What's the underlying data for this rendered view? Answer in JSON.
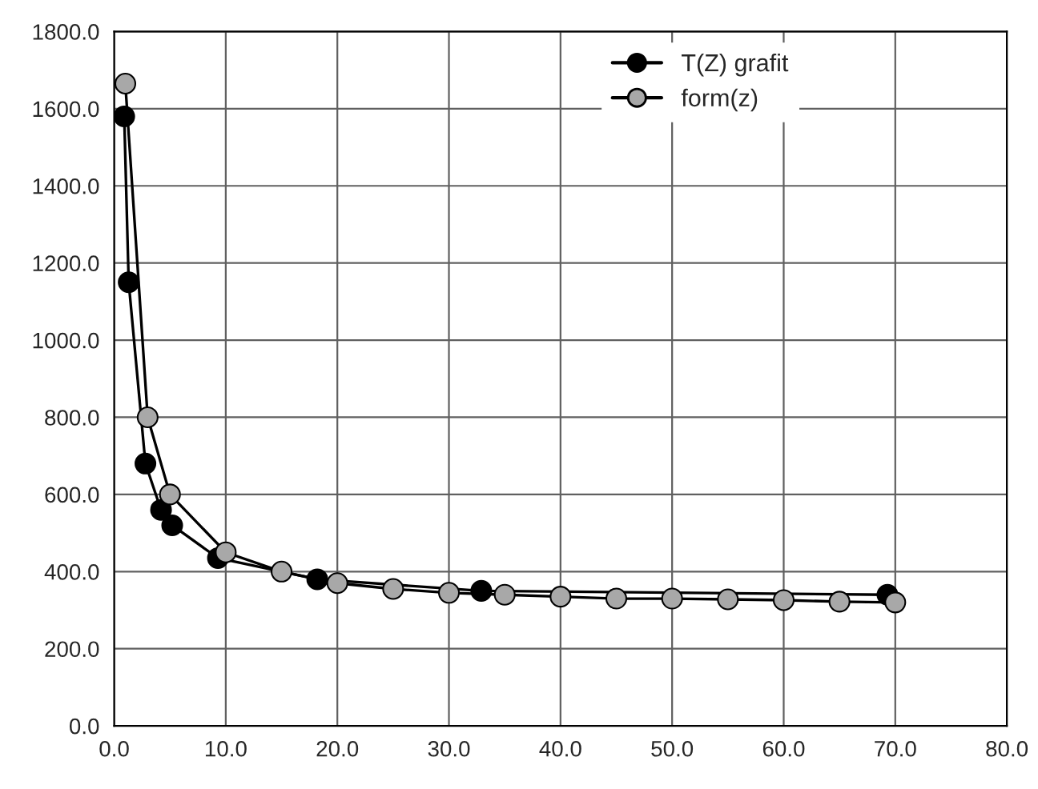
{
  "chart_data": {
    "type": "line",
    "series": [
      {
        "name": "T(Z) grafit",
        "color": "#000000",
        "x": [
          0.9,
          1.3,
          2.8,
          4.2,
          5.2,
          9.3,
          18.2,
          32.9,
          69.3
        ],
        "values": [
          1580,
          1150,
          680,
          560,
          520,
          435,
          380,
          350,
          340
        ]
      },
      {
        "name": "form(z)",
        "color": "#a8a8a8",
        "x": [
          1.0,
          3.0,
          5.0,
          10,
          15,
          20,
          25,
          30,
          35,
          40,
          45,
          50,
          55,
          60,
          65,
          70
        ],
        "values": [
          1665,
          800,
          600,
          450,
          400,
          370,
          355,
          345,
          340,
          335,
          330,
          330,
          328,
          326,
          322,
          320
        ]
      }
    ],
    "xlim": [
      0,
      80
    ],
    "xticks": [
      {
        "value": 0,
        "label": "0.0"
      },
      {
        "value": 10,
        "label": "10.0"
      },
      {
        "value": 20,
        "label": "20.0"
      },
      {
        "value": 30,
        "label": "30.0"
      },
      {
        "value": 40,
        "label": "40.0"
      },
      {
        "value": 50,
        "label": "50.0"
      },
      {
        "value": 60,
        "label": "60.0"
      },
      {
        "value": 70,
        "label": "70.0"
      },
      {
        "value": 80,
        "label": "80.0"
      }
    ],
    "ylim": [
      0,
      1800
    ],
    "yticks": [
      {
        "value": 0,
        "label": "0.0"
      },
      {
        "value": 200,
        "label": "200.0"
      },
      {
        "value": 400,
        "label": "400.0"
      },
      {
        "value": 600,
        "label": "600.0"
      },
      {
        "value": 800,
        "label": "800.0"
      },
      {
        "value": 1000,
        "label": "1000.0"
      },
      {
        "value": 1200,
        "label": "1200.0"
      },
      {
        "value": 1400,
        "label": "1400.0"
      },
      {
        "value": 1600,
        "label": "1600.0"
      },
      {
        "value": 1800,
        "label": "1800.0"
      }
    ],
    "grid": true,
    "legend": "top right",
    "marker": "circle",
    "line_style": "solid"
  }
}
